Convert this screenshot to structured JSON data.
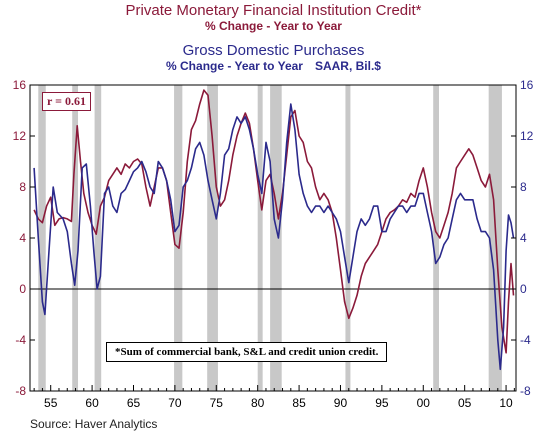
{
  "header": {
    "title1": "Private Monetary Financial Institution Credit*",
    "subtitle1": "% Change - Year to Year",
    "title2": "Gross Domestic Purchases",
    "subtitle2_left": "% Change - Year to Year",
    "subtitle2_right": "SAAR, Bil.$"
  },
  "footer": {
    "source": "Source: Haver Analytics"
  },
  "annotations": {
    "correlation": "r = 0.61",
    "footnote": "*Sum of commercial bank, S&L and credit union credit."
  },
  "colors": {
    "credit": "#8b1a3a",
    "gdp": "#2b2a8c",
    "recession": "#c8c8c8"
  },
  "chart_data": {
    "type": "line",
    "xlim": [
      1952.5,
      2011.2
    ],
    "ylim": [
      -8,
      16
    ],
    "x_ticks": [
      1955,
      1960,
      1965,
      1970,
      1975,
      1980,
      1985,
      1990,
      1995,
      2000,
      2005,
      2010
    ],
    "x_tick_labels": [
      "55",
      "60",
      "65",
      "70",
      "75",
      "80",
      "85",
      "90",
      "95",
      "00",
      "05",
      "10"
    ],
    "y_ticks": [
      -8,
      -4,
      0,
      4,
      8,
      12,
      16
    ],
    "y_tick_labels_left": [
      "-8",
      "-4",
      "0",
      "4",
      "8",
      "12",
      "16"
    ],
    "y_tick_labels_right": [
      "-8",
      "-4",
      "0",
      "4",
      "8",
      "12",
      "16"
    ],
    "recessions": [
      [
        1953.5,
        1954.4
      ],
      [
        1957.6,
        1958.3
      ],
      [
        1960.3,
        1961.1
      ],
      [
        1969.9,
        1970.9
      ],
      [
        1973.9,
        1975.2
      ],
      [
        1980.0,
        1980.6
      ],
      [
        1981.5,
        1982.9
      ],
      [
        1990.6,
        1991.2
      ],
      [
        2001.2,
        2001.9
      ],
      [
        2007.9,
        2009.5
      ]
    ],
    "zero_line": true,
    "series": [
      {
        "name": "Private Monetary Financial Institution Credit*",
        "color": "#8b1a3a",
        "points": [
          [
            1953.0,
            6.2
          ],
          [
            1953.5,
            5.5
          ],
          [
            1954.0,
            5.2
          ],
          [
            1954.5,
            6.5
          ],
          [
            1955.0,
            7.2
          ],
          [
            1955.5,
            5.0
          ],
          [
            1956.0,
            5.5
          ],
          [
            1956.5,
            5.6
          ],
          [
            1957.0,
            5.5
          ],
          [
            1957.5,
            5.3
          ],
          [
            1957.8,
            9.0
          ],
          [
            1958.2,
            12.8
          ],
          [
            1958.6,
            10.0
          ],
          [
            1959.0,
            7.5
          ],
          [
            1959.5,
            6.0
          ],
          [
            1960.0,
            5.0
          ],
          [
            1960.5,
            4.3
          ],
          [
            1961.0,
            6.5
          ],
          [
            1961.5,
            7.2
          ],
          [
            1962.0,
            8.5
          ],
          [
            1962.5,
            9.0
          ],
          [
            1963.0,
            9.5
          ],
          [
            1963.5,
            9.0
          ],
          [
            1964.0,
            9.8
          ],
          [
            1964.5,
            9.5
          ],
          [
            1965.0,
            10.0
          ],
          [
            1965.5,
            10.2
          ],
          [
            1966.0,
            9.8
          ],
          [
            1966.5,
            8.0
          ],
          [
            1967.0,
            6.5
          ],
          [
            1967.5,
            8.0
          ],
          [
            1968.0,
            9.5
          ],
          [
            1968.5,
            9.5
          ],
          [
            1969.0,
            8.5
          ],
          [
            1969.5,
            6.0
          ],
          [
            1970.0,
            3.5
          ],
          [
            1970.5,
            3.2
          ],
          [
            1971.0,
            6.0
          ],
          [
            1971.5,
            10.0
          ],
          [
            1972.0,
            12.5
          ],
          [
            1972.5,
            13.2
          ],
          [
            1973.0,
            14.5
          ],
          [
            1973.5,
            15.6
          ],
          [
            1974.0,
            15.2
          ],
          [
            1974.5,
            12.0
          ],
          [
            1975.0,
            8.0
          ],
          [
            1975.5,
            6.5
          ],
          [
            1976.0,
            7.0
          ],
          [
            1976.5,
            8.5
          ],
          [
            1977.0,
            10.5
          ],
          [
            1977.5,
            12.0
          ],
          [
            1978.0,
            13.0
          ],
          [
            1978.5,
            13.8
          ],
          [
            1979.0,
            13.0
          ],
          [
            1979.5,
            11.0
          ],
          [
            1980.0,
            8.5
          ],
          [
            1980.5,
            6.2
          ],
          [
            1981.0,
            8.5
          ],
          [
            1981.5,
            9.0
          ],
          [
            1982.0,
            7.5
          ],
          [
            1982.5,
            5.5
          ],
          [
            1983.0,
            7.5
          ],
          [
            1983.5,
            10.5
          ],
          [
            1984.0,
            13.5
          ],
          [
            1984.5,
            14.0
          ],
          [
            1985.0,
            12.0
          ],
          [
            1985.5,
            11.5
          ],
          [
            1986.0,
            10.0
          ],
          [
            1986.5,
            9.5
          ],
          [
            1987.0,
            8.0
          ],
          [
            1987.5,
            7.0
          ],
          [
            1988.0,
            7.5
          ],
          [
            1988.5,
            7.0
          ],
          [
            1989.0,
            6.0
          ],
          [
            1989.5,
            4.0
          ],
          [
            1990.0,
            1.5
          ],
          [
            1990.5,
            -1.0
          ],
          [
            1991.0,
            -2.3
          ],
          [
            1991.5,
            -1.5
          ],
          [
            1992.0,
            -0.5
          ],
          [
            1992.5,
            1.0
          ],
          [
            1993.0,
            2.0
          ],
          [
            1993.5,
            2.5
          ],
          [
            1994.0,
            3.0
          ],
          [
            1994.5,
            3.5
          ],
          [
            1995.0,
            4.5
          ],
          [
            1995.5,
            5.5
          ],
          [
            1996.0,
            6.0
          ],
          [
            1996.5,
            6.2
          ],
          [
            1997.0,
            6.5
          ],
          [
            1997.5,
            7.0
          ],
          [
            1998.0,
            6.8
          ],
          [
            1998.5,
            7.5
          ],
          [
            1999.0,
            7.2
          ],
          [
            1999.5,
            8.5
          ],
          [
            2000.0,
            9.5
          ],
          [
            2000.5,
            8.0
          ],
          [
            2001.0,
            6.0
          ],
          [
            2001.5,
            4.5
          ],
          [
            2002.0,
            4.0
          ],
          [
            2002.5,
            5.0
          ],
          [
            2003.0,
            6.0
          ],
          [
            2003.5,
            7.5
          ],
          [
            2004.0,
            9.5
          ],
          [
            2004.5,
            10.0
          ],
          [
            2005.0,
            10.5
          ],
          [
            2005.5,
            11.0
          ],
          [
            2006.0,
            10.5
          ],
          [
            2006.5,
            9.5
          ],
          [
            2007.0,
            8.5
          ],
          [
            2007.5,
            8.0
          ],
          [
            2008.0,
            9.0
          ],
          [
            2008.5,
            7.0
          ],
          [
            2009.0,
            1.5
          ],
          [
            2009.5,
            -3.0
          ],
          [
            2010.0,
            -5.0
          ],
          [
            2010.3,
            -1.0
          ],
          [
            2010.6,
            2.0
          ],
          [
            2010.9,
            -0.5
          ]
        ]
      },
      {
        "name": "Gross Domestic Purchases",
        "color": "#2b2a8c",
        "points": [
          [
            1953.0,
            9.5
          ],
          [
            1953.5,
            4.0
          ],
          [
            1954.0,
            -1.0
          ],
          [
            1954.3,
            -2.0
          ],
          [
            1954.8,
            3.0
          ],
          [
            1955.3,
            8.0
          ],
          [
            1955.8,
            6.0
          ],
          [
            1956.5,
            5.5
          ],
          [
            1957.0,
            4.5
          ],
          [
            1957.5,
            2.0
          ],
          [
            1957.9,
            0.3
          ],
          [
            1958.3,
            3.0
          ],
          [
            1958.8,
            9.5
          ],
          [
            1959.3,
            9.8
          ],
          [
            1959.8,
            6.5
          ],
          [
            1960.2,
            3.0
          ],
          [
            1960.6,
            0.0
          ],
          [
            1961.0,
            1.0
          ],
          [
            1961.5,
            7.5
          ],
          [
            1962.0,
            8.0
          ],
          [
            1962.5,
            6.5
          ],
          [
            1963.0,
            6.0
          ],
          [
            1963.5,
            7.5
          ],
          [
            1964.0,
            7.8
          ],
          [
            1964.5,
            8.5
          ],
          [
            1965.0,
            9.2
          ],
          [
            1965.5,
            9.5
          ],
          [
            1966.0,
            10.0
          ],
          [
            1966.5,
            9.2
          ],
          [
            1967.0,
            8.0
          ],
          [
            1967.5,
            7.5
          ],
          [
            1968.0,
            10.0
          ],
          [
            1968.5,
            9.5
          ],
          [
            1969.0,
            8.5
          ],
          [
            1969.5,
            7.0
          ],
          [
            1970.0,
            4.5
          ],
          [
            1970.5,
            5.0
          ],
          [
            1971.0,
            8.0
          ],
          [
            1971.5,
            8.5
          ],
          [
            1972.0,
            9.5
          ],
          [
            1972.5,
            11.0
          ],
          [
            1973.0,
            11.5
          ],
          [
            1973.5,
            10.5
          ],
          [
            1974.0,
            8.5
          ],
          [
            1974.5,
            7.0
          ],
          [
            1975.0,
            5.5
          ],
          [
            1975.5,
            7.5
          ],
          [
            1976.0,
            10.5
          ],
          [
            1976.5,
            11.0
          ],
          [
            1977.0,
            12.5
          ],
          [
            1977.5,
            13.5
          ],
          [
            1978.0,
            13.0
          ],
          [
            1978.5,
            13.5
          ],
          [
            1979.0,
            12.5
          ],
          [
            1979.5,
            11.0
          ],
          [
            1980.0,
            9.0
          ],
          [
            1980.5,
            7.5
          ],
          [
            1981.0,
            11.5
          ],
          [
            1981.5,
            10.0
          ],
          [
            1982.0,
            5.5
          ],
          [
            1982.5,
            4.0
          ],
          [
            1983.0,
            7.0
          ],
          [
            1983.5,
            11.5
          ],
          [
            1984.0,
            14.5
          ],
          [
            1984.5,
            12.5
          ],
          [
            1985.0,
            9.0
          ],
          [
            1985.5,
            7.5
          ],
          [
            1986.0,
            6.5
          ],
          [
            1986.5,
            6.0
          ],
          [
            1987.0,
            6.5
          ],
          [
            1987.5,
            6.5
          ],
          [
            1988.0,
            6.0
          ],
          [
            1988.5,
            6.5
          ],
          [
            1989.0,
            6.0
          ],
          [
            1989.5,
            5.5
          ],
          [
            1990.0,
            4.5
          ],
          [
            1990.5,
            2.5
          ],
          [
            1991.0,
            0.5
          ],
          [
            1991.5,
            2.5
          ],
          [
            1992.0,
            4.5
          ],
          [
            1992.5,
            5.5
          ],
          [
            1993.0,
            5.0
          ],
          [
            1993.5,
            5.5
          ],
          [
            1994.0,
            6.5
          ],
          [
            1994.5,
            6.5
          ],
          [
            1995.0,
            4.5
          ],
          [
            1995.5,
            4.5
          ],
          [
            1996.0,
            5.5
          ],
          [
            1996.5,
            6.0
          ],
          [
            1997.0,
            6.5
          ],
          [
            1997.5,
            6.5
          ],
          [
            1998.0,
            6.0
          ],
          [
            1998.5,
            6.5
          ],
          [
            1999.0,
            6.5
          ],
          [
            1999.5,
            7.5
          ],
          [
            2000.0,
            7.5
          ],
          [
            2000.5,
            6.0
          ],
          [
            2001.0,
            4.5
          ],
          [
            2001.5,
            2.0
          ],
          [
            2002.0,
            2.5
          ],
          [
            2002.5,
            3.5
          ],
          [
            2003.0,
            4.0
          ],
          [
            2003.5,
            5.5
          ],
          [
            2004.0,
            7.0
          ],
          [
            2004.5,
            7.5
          ],
          [
            2005.0,
            7.0
          ],
          [
            2005.5,
            7.0
          ],
          [
            2006.0,
            7.0
          ],
          [
            2006.5,
            5.5
          ],
          [
            2007.0,
            4.5
          ],
          [
            2007.5,
            4.5
          ],
          [
            2008.0,
            4.0
          ],
          [
            2008.5,
            1.5
          ],
          [
            2009.0,
            -4.0
          ],
          [
            2009.3,
            -6.3
          ],
          [
            2009.7,
            -3.0
          ],
          [
            2010.0,
            3.0
          ],
          [
            2010.3,
            5.8
          ],
          [
            2010.6,
            5.2
          ],
          [
            2010.9,
            4.0
          ]
        ]
      }
    ]
  }
}
